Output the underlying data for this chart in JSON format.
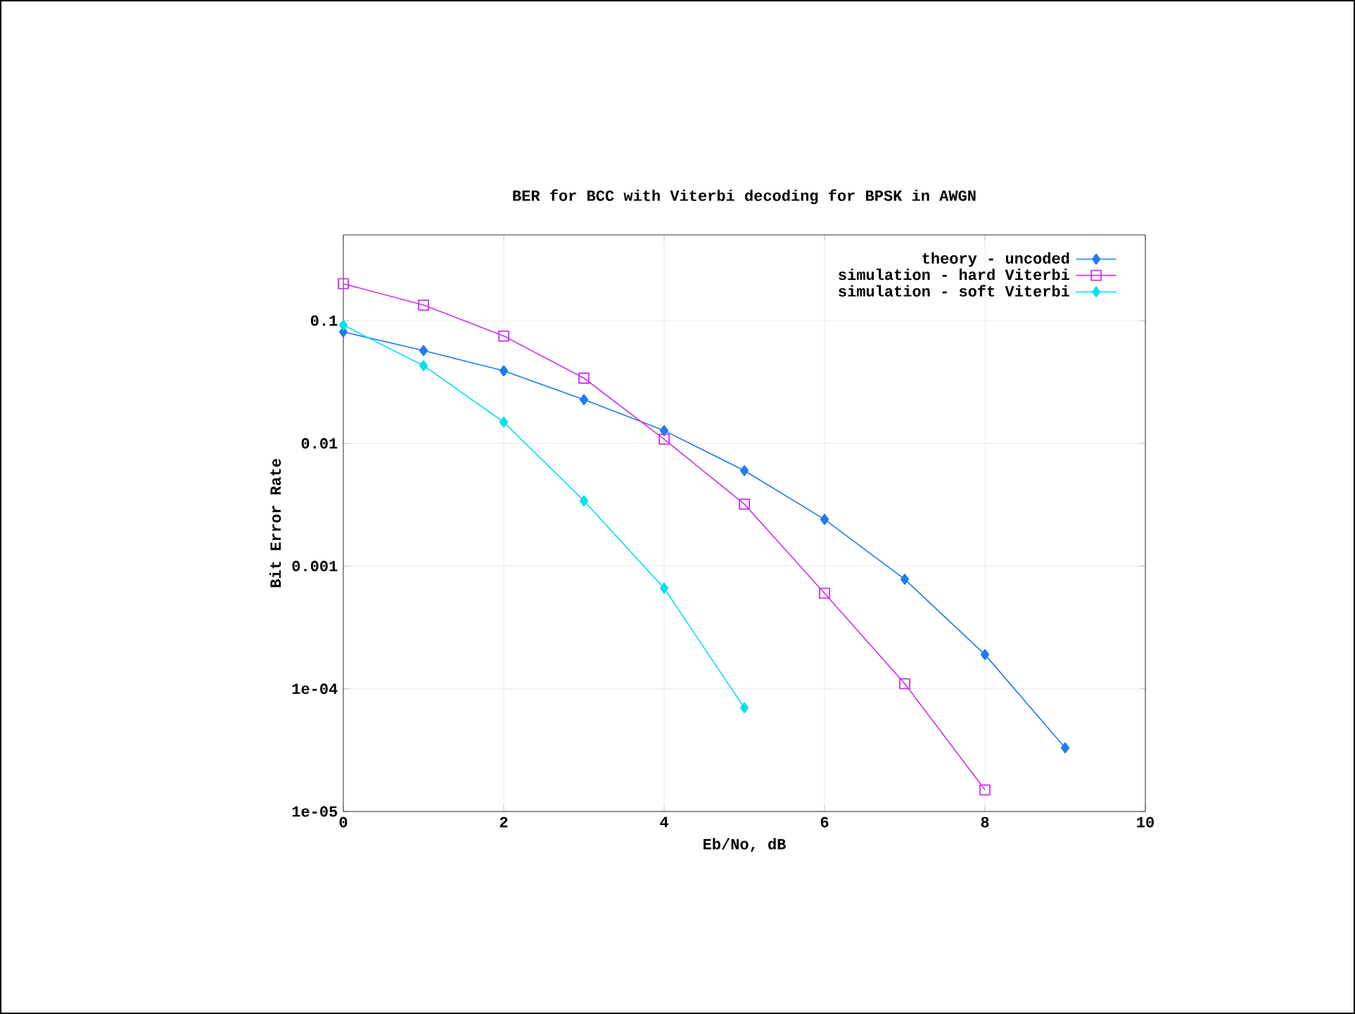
{
  "chart_data": {
    "type": "line",
    "title": "BER for BCC with Viterbi decoding for BPSK in AWGN",
    "xlabel": "Eb/No, dB",
    "ylabel": "Bit Error Rate",
    "log": "y",
    "grid": true,
    "legend": "top right",
    "line_style": "solid",
    "xlim": [
      0,
      10
    ],
    "ylim": [
      1e-05,
      0.5
    ],
    "xticks": [
      0,
      2,
      4,
      6,
      8,
      10
    ],
    "yticks": [
      {
        "value": 0.1,
        "label": "0.1"
      },
      {
        "value": 0.01,
        "label": "0.01"
      },
      {
        "value": 0.001,
        "label": "0.001"
      },
      {
        "value": 0.0001,
        "label": "1e-04"
      },
      {
        "value": 1e-05,
        "label": "1e-05"
      }
    ],
    "x": [
      0,
      1,
      2,
      3,
      4,
      5,
      6,
      7,
      8,
      9
    ],
    "series": [
      {
        "name": "theory - uncoded",
        "color": "#1e7cf0",
        "marker": "diamond",
        "values": [
          0.081,
          0.057,
          0.039,
          0.0227,
          0.0127,
          0.006,
          0.0024,
          0.00078,
          0.00019,
          3.3e-05
        ]
      },
      {
        "name": "simulation - hard Viterbi",
        "color": "#cc33ee",
        "marker": "square",
        "values": [
          0.2,
          0.134,
          0.075,
          0.034,
          0.0108,
          0.0032,
          0.0006,
          0.00011,
          1.5e-05,
          null
        ]
      },
      {
        "name": "simulation - soft Viterbi",
        "color": "#00e0f0",
        "marker": "diamond",
        "values": [
          0.092,
          0.043,
          0.0149,
          0.0034,
          0.00066,
          7e-05,
          null,
          null,
          null,
          null
        ]
      }
    ]
  }
}
